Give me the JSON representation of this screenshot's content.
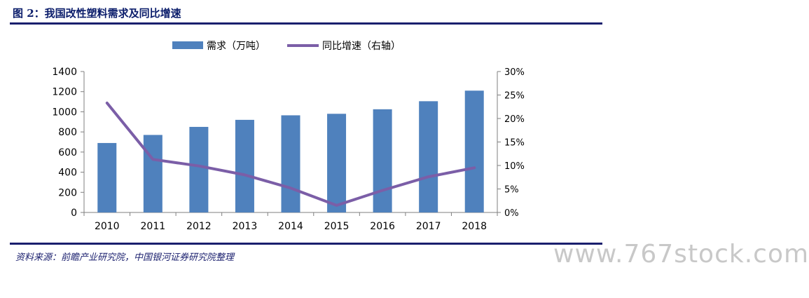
{
  "figure": {
    "title": "图 2：我国改性塑料需求及同比增速",
    "source": "资料来源：前瞻产业研究院，中国银河证券研究院整理",
    "watermark": "www.767stock.com"
  },
  "chart_data": {
    "type": "bar",
    "categories": [
      "2010",
      "2011",
      "2012",
      "2013",
      "2014",
      "2015",
      "2016",
      "2017",
      "2018"
    ],
    "series": [
      {
        "name": "需求（万吨）",
        "type": "bar",
        "axis": "left",
        "color": "#4f81bd",
        "values": [
          690,
          770,
          850,
          920,
          965,
          980,
          1025,
          1105,
          1210
        ]
      },
      {
        "name": "同比增速（右轴）",
        "type": "line",
        "axis": "right",
        "color": "#7b5ea7",
        "values": [
          23.3,
          11.3,
          9.9,
          8.0,
          5.2,
          1.5,
          4.7,
          7.6,
          9.5
        ]
      }
    ],
    "y_left": {
      "ylim": [
        0,
        1400
      ],
      "ticks": [
        0,
        200,
        400,
        600,
        800,
        1000,
        1200,
        1400
      ],
      "tick_labels": [
        "0",
        "200",
        "400",
        "600",
        "800",
        "1000",
        "1200",
        "1400"
      ]
    },
    "y_right": {
      "ylim": [
        0,
        30
      ],
      "ticks": [
        0,
        5,
        10,
        15,
        20,
        25,
        30
      ],
      "tick_labels": [
        "0%",
        "5%",
        "10%",
        "15%",
        "20%",
        "25%",
        "30%"
      ]
    },
    "legend_position": "top-center",
    "grid": false
  }
}
